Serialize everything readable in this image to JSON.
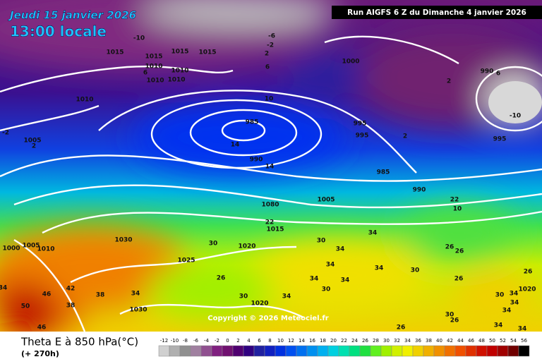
{
  "header": {
    "date": "Jeudi 15 janvier 2026",
    "time": "13:00 locale",
    "run": "Run AIGFS 6 Z du Dimanche 4 janvier 2026"
  },
  "map": {
    "isobar_labels": [
      "1015",
      "1015",
      "1015",
      "1015",
      "1010",
      "1010",
      "1010",
      "1010",
      "1010",
      "1005",
      "1000",
      "985",
      "990",
      "995",
      "995",
      "995",
      "985",
      "990",
      "1005",
      "1080",
      "1015",
      "1030",
      "1020",
      "1025",
      "1000",
      "1005",
      "1010",
      "1030",
      "1020",
      "1020",
      "990"
    ],
    "temperature_labels": [
      "-10",
      "-6",
      "-2",
      "2",
      "6",
      "6",
      "10",
      "-2",
      "2",
      "14",
      "14",
      "2",
      "6",
      "-10",
      "2",
      "22",
      "10",
      "22",
      "30",
      "34",
      "30",
      "34",
      "34",
      "34",
      "34",
      "34",
      "30",
      "26",
      "34",
      "42",
      "46",
      "38",
      "38",
      "50",
      "46",
      "34",
      "30",
      "34",
      "30",
      "26",
      "30",
      "26",
      "26",
      "30",
      "34",
      "34",
      "34",
      "34",
      "34",
      "26",
      "26",
      "26"
    ],
    "copyright": "Copyright © 2026 Meteociel.fr"
  },
  "footer": {
    "title": "Theta E à 850 hPa(°C)",
    "lead": "(+ 270h)"
  },
  "colorbar": {
    "ticks": [
      -12,
      -10,
      -8,
      -6,
      -4,
      -2,
      0,
      2,
      4,
      6,
      8,
      10,
      12,
      14,
      16,
      18,
      20,
      22,
      24,
      26,
      28,
      30,
      32,
      34,
      36,
      38,
      40,
      42,
      44,
      46,
      48,
      50,
      52,
      54,
      56
    ],
    "colors": [
      "#d0d0d0",
      "#b0b0b0",
      "#909090",
      "#a080a0",
      "#905090",
      "#802080",
      "#701070",
      "#500070",
      "#300080",
      "#2020a0",
      "#1020c0",
      "#0030e0",
      "#0050f0",
      "#0070f0",
      "#0090f0",
      "#00b0f0",
      "#00d0e0",
      "#00e0b0",
      "#00e080",
      "#20e040",
      "#60f020",
      "#a0f000",
      "#d0f000",
      "#f0f000",
      "#f0d000",
      "#f0b000",
      "#f09000",
      "#f07000",
      "#f05000",
      "#e03000",
      "#d01000",
      "#c00000",
      "#a00000",
      "#700000",
      "#000000"
    ]
  }
}
